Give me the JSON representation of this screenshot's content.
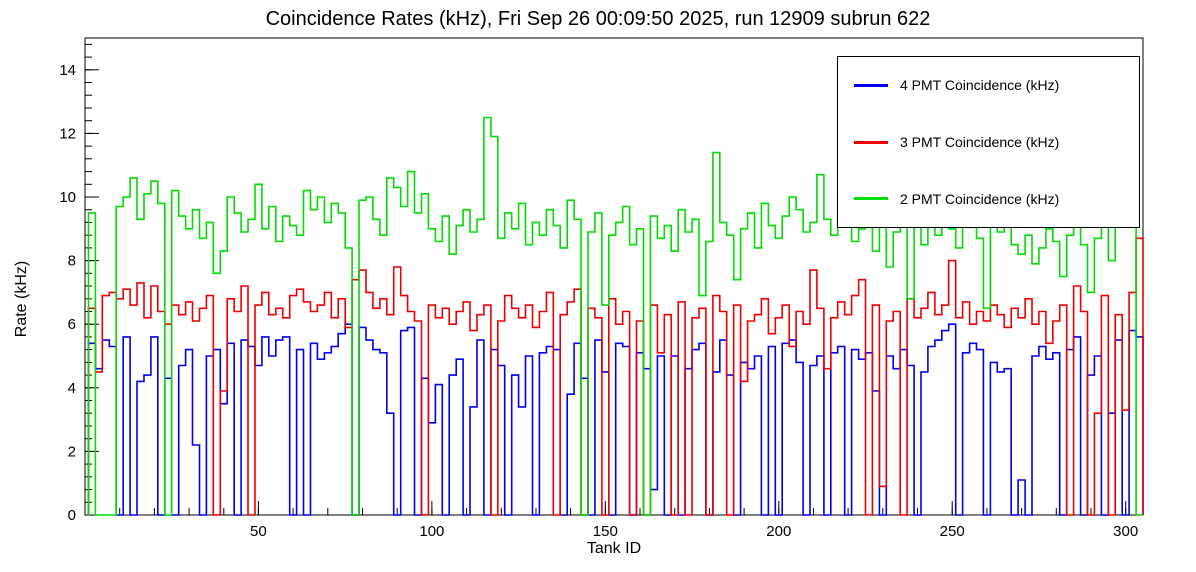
{
  "chart_data": {
    "type": "line",
    "style": "step-histogram",
    "title": "Coincidence Rates (kHz), Fri Sep 26 00:09:50 2025, run 12909 subrun 622",
    "xlabel": "Tank ID",
    "ylabel": "Rate (kHz)",
    "xlim": [
      0,
      305
    ],
    "ylim": [
      0,
      15
    ],
    "x_ticks_major": [
      50,
      100,
      150,
      200,
      250,
      300
    ],
    "x_minor_step": 10,
    "y_ticks_major": [
      0,
      2,
      4,
      6,
      8,
      10,
      12,
      14
    ],
    "y_minor_step": 0.4,
    "grid": false,
    "legend_position": "top-right",
    "bins": {
      "first_edge": 1,
      "width": 2,
      "count": 152
    },
    "series": [
      {
        "id": "4pmt",
        "name": "4 PMT Coincidence (kHz)",
        "color": "#0000ee",
        "values": [
          5.4,
          4.6,
          5.5,
          5.3,
          0,
          5.6,
          0,
          4.2,
          4.4,
          5.6,
          0,
          4.3,
          0,
          4.7,
          5.2,
          2.2,
          0,
          5.0,
          5.2,
          3.5,
          5.4,
          0,
          5.5,
          5.3,
          4.7,
          5.6,
          5.0,
          5.5,
          5.6,
          0,
          5.2,
          0,
          5.4,
          4.9,
          5.1,
          5.3,
          5.7,
          6.0,
          0,
          5.9,
          5.5,
          5.2,
          5.1,
          3.2,
          0,
          5.8,
          5.9,
          0,
          4.3,
          2.9,
          4.1,
          0,
          4.4,
          4.9,
          0,
          3.4,
          5.5,
          0,
          5.2,
          4.7,
          0,
          4.4,
          3.4,
          5.0,
          0,
          5.1,
          5.3,
          5.2,
          0,
          3.8,
          5.4,
          4.3,
          0,
          5.5,
          4.5,
          0,
          5.4,
          5.3,
          0,
          5.1,
          4.6,
          0.8,
          5.0,
          0,
          5.0,
          0,
          4.6,
          5.2,
          5.4,
          0,
          4.5,
          5.5,
          4.4,
          0,
          4.8,
          4.6,
          5.0,
          0,
          5.3,
          0,
          5.4,
          5.5,
          4.8,
          0,
          4.7,
          5.0,
          0,
          5.1,
          5.3,
          0,
          5.2,
          4.9,
          5.1,
          3.9,
          0,
          5.0,
          4.6,
          5.2,
          4.7,
          0,
          4.5,
          5.3,
          5.5,
          5.8,
          6.0,
          0,
          5.1,
          5.4,
          5.2,
          0,
          4.8,
          4.5,
          4.6,
          0,
          1.1,
          0,
          5.0,
          5.3,
          4.9,
          5.1,
          0,
          5.2,
          5.6,
          0,
          4.4,
          5.0,
          0,
          3.2,
          5.5,
          0,
          5.8,
          5.6
        ]
      },
      {
        "id": "3pmt",
        "name": "3 PMT Coincidence (kHz)",
        "color": "#ee0000",
        "values": [
          6.5,
          4.5,
          6.9,
          7.0,
          6.8,
          7.1,
          6.6,
          7.3,
          6.2,
          7.2,
          6.4,
          6.0,
          6.6,
          6.3,
          6.7,
          6.1,
          6.5,
          6.9,
          0,
          3.9,
          6.8,
          6.4,
          7.2,
          0,
          6.6,
          7.0,
          6.3,
          6.5,
          6.2,
          6.9,
          7.1,
          6.7,
          6.4,
          6.6,
          7.0,
          6.2,
          6.8,
          5.9,
          7.4,
          7.7,
          7.0,
          6.5,
          6.8,
          6.3,
          7.8,
          6.9,
          6.4,
          6.1,
          0,
          6.6,
          6.2,
          6.5,
          6.0,
          6.4,
          6.7,
          5.8,
          6.3,
          6.6,
          0,
          6.1,
          6.9,
          6.5,
          6.2,
          6.6,
          5.9,
          6.4,
          7.0,
          0,
          6.3,
          6.7,
          7.1,
          0,
          6.5,
          6.2,
          0,
          6.8,
          6.0,
          6.4,
          0,
          6.1,
          0,
          6.6,
          5.1,
          6.3,
          0,
          6.7,
          0,
          6.2,
          6.5,
          0,
          6.9,
          6.4,
          0,
          6.6,
          4.2,
          6.1,
          6.3,
          6.8,
          5.7,
          6.2,
          6.6,
          5.3,
          6.4,
          6.0,
          7.7,
          6.5,
          4.6,
          6.2,
          6.7,
          6.3,
          6.9,
          7.4,
          0,
          6.6,
          0.9,
          6.1,
          6.4,
          0,
          6.8,
          6.2,
          6.5,
          7.0,
          6.3,
          6.6,
          8.0,
          6.2,
          6.7,
          6.0,
          6.4,
          6.1,
          6.6,
          6.3,
          5.9,
          6.5,
          6.2,
          6.8,
          6.0,
          6.4,
          5.4,
          6.1,
          6.6,
          0,
          7.2,
          6.4,
          0,
          3.2,
          6.9,
          0,
          6.3,
          3.3,
          7.0,
          8.7
        ]
      },
      {
        "id": "2pmt",
        "name": "2 PMT Coincidence (kHz)",
        "color": "#00dd00",
        "values": [
          9.5,
          0,
          0,
          0,
          9.7,
          10.0,
          10.6,
          9.3,
          10.1,
          10.5,
          9.8,
          0,
          10.2,
          9.4,
          9.0,
          9.6,
          8.7,
          9.2,
          7.6,
          8.3,
          10.0,
          9.5,
          8.9,
          9.3,
          10.4,
          9.0,
          9.7,
          8.6,
          9.4,
          9.1,
          8.8,
          10.2,
          9.6,
          10.0,
          9.2,
          9.8,
          9.5,
          8.4,
          0,
          9.9,
          10.0,
          9.3,
          8.8,
          10.6,
          10.3,
          9.7,
          10.8,
          9.5,
          10.1,
          9.0,
          8.6,
          9.4,
          8.2,
          9.1,
          9.6,
          8.9,
          9.3,
          12.5,
          11.9,
          8.7,
          9.5,
          9.0,
          9.8,
          8.5,
          9.2,
          8.8,
          9.6,
          9.1,
          8.4,
          9.9,
          9.3,
          0,
          8.9,
          9.5,
          6.6,
          8.8,
          9.2,
          9.7,
          8.5,
          9.0,
          0,
          9.4,
          8.7,
          9.1,
          8.3,
          9.6,
          8.9,
          9.3,
          6.9,
          8.6,
          11.4,
          9.2,
          8.8,
          7.4,
          9.0,
          9.5,
          8.4,
          9.8,
          9.1,
          8.7,
          9.4,
          10.0,
          9.6,
          8.9,
          9.2,
          10.7,
          9.3,
          8.8,
          10.1,
          9.5,
          8.6,
          9.0,
          9.7,
          8.3,
          9.2,
          7.8,
          8.9,
          9.4,
          6.8,
          9.1,
          8.5,
          9.6,
          8.8,
          9.3,
          9.0,
          8.4,
          9.8,
          9.2,
          8.7,
          6.5,
          9.4,
          8.9,
          9.1,
          8.5,
          8.2,
          8.8,
          7.9,
          8.4,
          9.0,
          8.6,
          7.5,
          8.8,
          9.2,
          8.5,
          7.0,
          8.7,
          9.3,
          8.0,
          9.6,
          10.2,
          11.4,
          0
        ]
      }
    ]
  }
}
